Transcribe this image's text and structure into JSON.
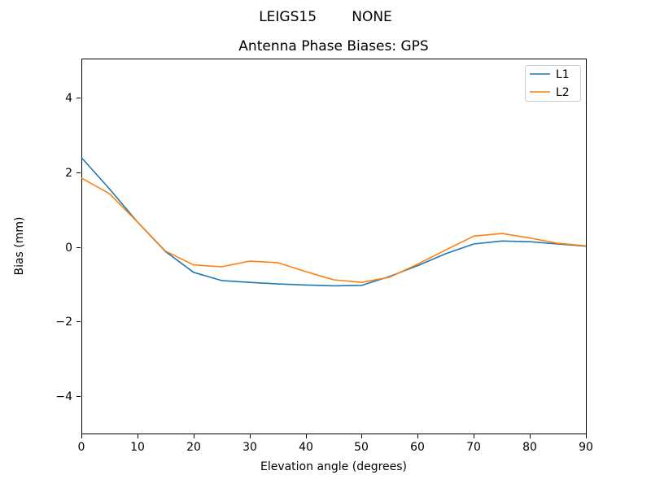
{
  "chart_data": {
    "type": "line",
    "suptitle": "LEIGS15        NONE",
    "title": "Antenna Phase Biases: GPS",
    "xlabel": "Elevation angle (degrees)",
    "ylabel": "Bias (mm)",
    "xlim": [
      0,
      90
    ],
    "ylim": [
      -5.0,
      5.05
    ],
    "xticks": [
      0,
      10,
      20,
      30,
      40,
      50,
      60,
      70,
      80,
      90
    ],
    "yticks": [
      -4,
      -2,
      0,
      2,
      4
    ],
    "grid": false,
    "legend": {
      "position": "upper right",
      "entries": [
        "L1",
        "L2"
      ]
    },
    "x": [
      0,
      5,
      10,
      15,
      20,
      25,
      30,
      35,
      40,
      45,
      50,
      55,
      60,
      65,
      70,
      75,
      80,
      85,
      90
    ],
    "series": [
      {
        "name": "L1",
        "color": "#1f77b4",
        "values": [
          2.4,
          1.56,
          0.67,
          -0.12,
          -0.68,
          -0.9,
          -0.95,
          -0.99,
          -1.02,
          -1.04,
          -1.03,
          -0.79,
          -0.5,
          -0.18,
          0.08,
          0.16,
          0.14,
          0.08,
          0.02
        ]
      },
      {
        "name": "L2",
        "color": "#ff7f0e",
        "values": [
          1.85,
          1.43,
          0.67,
          -0.11,
          -0.48,
          -0.53,
          -0.38,
          -0.42,
          -0.66,
          -0.88,
          -0.95,
          -0.81,
          -0.46,
          -0.08,
          0.29,
          0.36,
          0.24,
          0.1,
          0.03
        ]
      }
    ]
  }
}
